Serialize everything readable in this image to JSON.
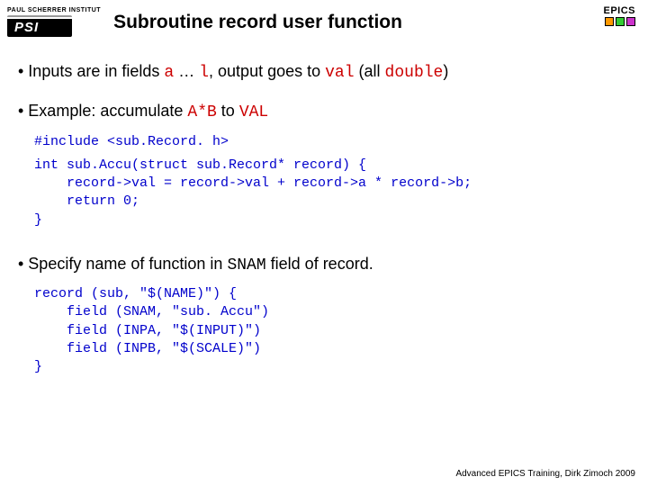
{
  "header": {
    "psi_institute": "PAUL SCHERRER INSTITUT",
    "title": "Subroutine record user function",
    "epics_label": "EPICS",
    "epics_colors": [
      "#ff9900",
      "#33cc33",
      "#cc33cc"
    ]
  },
  "bullets": {
    "b1_prefix": "• Inputs are in fields ",
    "b1_a": "a",
    "b1_mid": " … ",
    "b1_l": "l",
    "b1_after": ", output goes to ",
    "b1_val": "val",
    "b1_after2": " (all ",
    "b1_double": "double",
    "b1_close": ")",
    "b2_prefix": "• Example: accumulate ",
    "b2_ab": "A*B",
    "b2_mid": " to ",
    "b2_val": "VAL",
    "b3_prefix": "• Specify name of function in ",
    "b3_snam": "SNAM",
    "b3_after": " field of record."
  },
  "code": {
    "include": "#include <sub.Record. h>",
    "func": "int sub.Accu(struct sub.Record* record) {\n    record->val = record->val + record->a * record->b;\n    return 0;\n}",
    "record": "record (sub, \"$(NAME)\") {\n    field (SNAM, \"sub. Accu\")\n    field (INPA, \"$(INPUT)\")\n    field (INPB, \"$(SCALE)\")\n}"
  },
  "footer": "Advanced EPICS Training, Dirk Zimoch 2009",
  "colors": {
    "code_blue": "#0000cc",
    "red": "#cc0000",
    "text": "#000000",
    "background": "#ffffff"
  }
}
